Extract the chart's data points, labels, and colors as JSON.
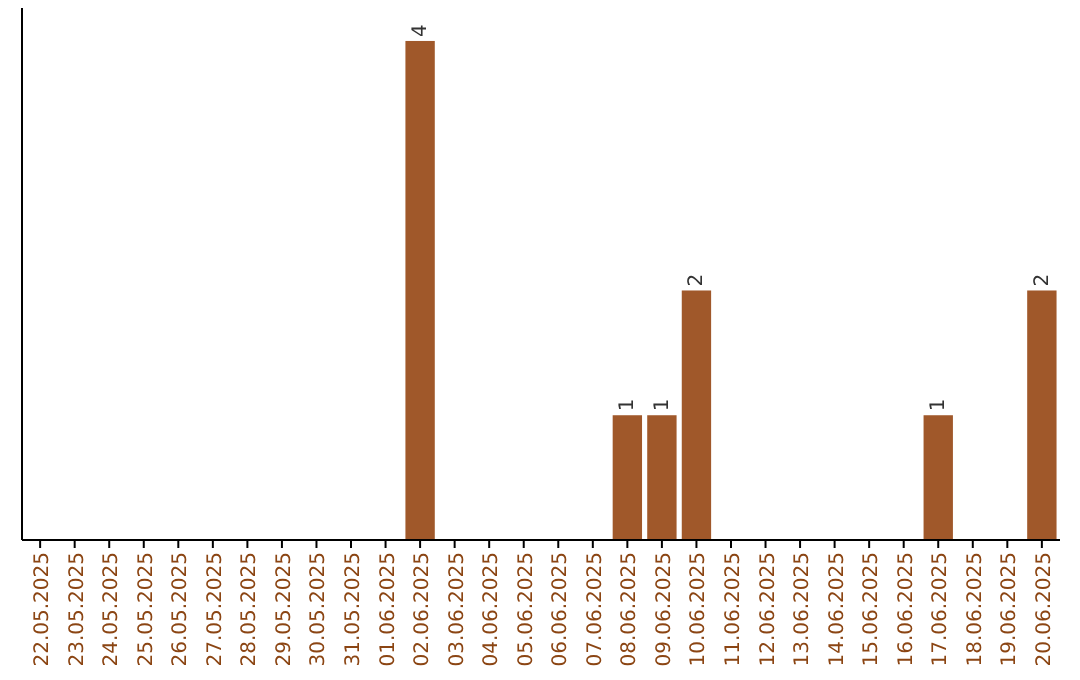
{
  "chart_data": {
    "type": "bar",
    "categories": [
      "22.05.2025",
      "23.05.2025",
      "24.05.2025",
      "25.05.2025",
      "26.05.2025",
      "27.05.2025",
      "28.05.2025",
      "29.05.2025",
      "30.05.2025",
      "31.05.2025",
      "01.06.2025",
      "02.06.2025",
      "03.06.2025",
      "04.06.2025",
      "05.06.2025",
      "06.06.2025",
      "07.06.2025",
      "08.06.2025",
      "09.06.2025",
      "10.06.2025",
      "11.06.2025",
      "12.06.2025",
      "13.06.2025",
      "14.06.2025",
      "15.06.2025",
      "16.06.2025",
      "17.06.2025",
      "18.06.2025",
      "19.06.2025",
      "20.06.2025"
    ],
    "values": [
      0,
      0,
      0,
      0,
      0,
      0,
      0,
      0,
      0,
      0,
      0,
      4,
      0,
      0,
      0,
      0,
      0,
      1,
      1,
      2,
      0,
      0,
      0,
      0,
      0,
      0,
      1,
      0,
      0,
      2
    ],
    "value_labels": [
      null,
      null,
      null,
      null,
      null,
      null,
      null,
      null,
      null,
      null,
      null,
      "4",
      null,
      null,
      null,
      null,
      null,
      "1",
      "1",
      "2",
      null,
      null,
      null,
      null,
      null,
      null,
      "1",
      null,
      null,
      "2"
    ],
    "color": "#a0582a",
    "tick_labels": "x"
  }
}
